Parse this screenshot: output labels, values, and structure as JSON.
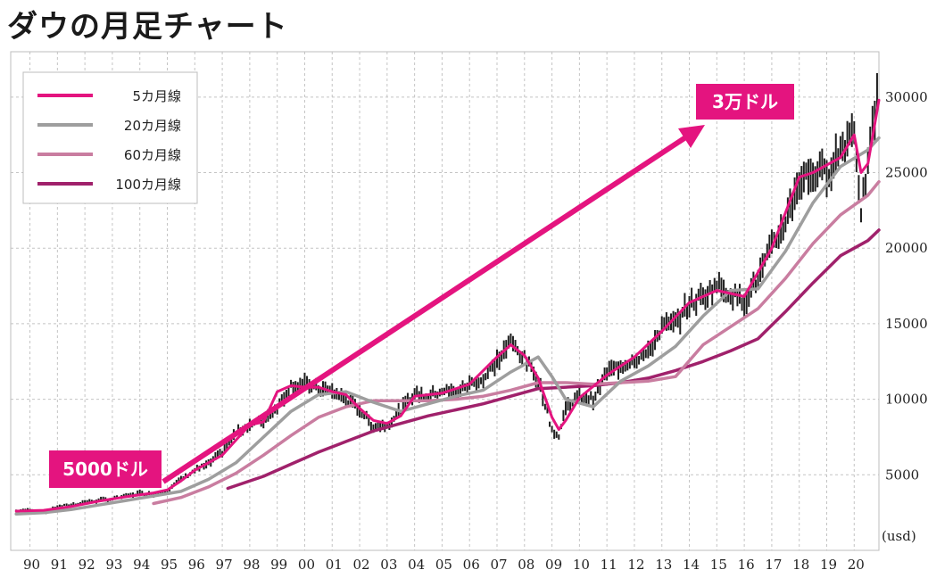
{
  "chart_data": {
    "type": "line",
    "title": "ダウの月足チャート",
    "ylabel": "(usd)",
    "xlim": [
      1989.3,
      2020.9
    ],
    "ylim": [
      0,
      33000
    ],
    "grid": true,
    "x_tick_labels": [
      "90",
      "91",
      "92",
      "93",
      "94",
      "95",
      "96",
      "97",
      "98",
      "99",
      "00",
      "01",
      "02",
      "03",
      "04",
      "05",
      "06",
      "07",
      "08",
      "09",
      "10",
      "11",
      "12",
      "13",
      "14",
      "15",
      "16",
      "17",
      "18",
      "19",
      "20"
    ],
    "y_ticks": [
      5000,
      10000,
      15000,
      20000,
      25000,
      30000
    ],
    "price_series": {
      "name": "月足",
      "x": [
        1989.5,
        1990,
        1990.5,
        1991,
        1991.5,
        1992,
        1992.5,
        1993,
        1993.5,
        1994,
        1994.5,
        1995,
        1995.5,
        1996,
        1996.5,
        1997,
        1997.5,
        1998,
        1998.5,
        1999,
        1999.5,
        2000,
        2000.5,
        2001,
        2001.5,
        2002,
        2002.5,
        2003,
        2003.5,
        2004,
        2004.5,
        2005,
        2005.5,
        2006,
        2006.5,
        2007,
        2007.5,
        2008,
        2008.5,
        2009,
        2009.25,
        2009.5,
        2010,
        2010.5,
        2011,
        2011.5,
        2012,
        2012.5,
        2013,
        2013.5,
        2014,
        2014.5,
        2015,
        2015.5,
        2016,
        2016.5,
        2017,
        2017.5,
        2018,
        2018.5,
        2019,
        2019.5,
        2020,
        2020.25,
        2020.5,
        2020.9
      ],
      "values": [
        2600,
        2700,
        2500,
        2900,
        3000,
        3200,
        3300,
        3400,
        3600,
        3800,
        3700,
        4000,
        4700,
        5300,
        5700,
        6500,
        7800,
        8300,
        8600,
        9500,
        10900,
        11000,
        10700,
        10500,
        10000,
        9300,
        8200,
        8300,
        9300,
        10400,
        10200,
        10600,
        10400,
        11000,
        11300,
        12500,
        13800,
        12700,
        11300,
        8000,
        7500,
        9500,
        10200,
        10000,
        11800,
        12200,
        12700,
        13000,
        14800,
        15000,
        16300,
        16800,
        17600,
        17000,
        16500,
        18000,
        20000,
        21800,
        24500,
        25000,
        25000,
        26500,
        28000,
        22500,
        25500,
        31000
      ]
    },
    "series": [
      {
        "name": "5カ月線",
        "color": "#e4147f",
        "x": [
          1989.5,
          1990.5,
          1991.5,
          1992.5,
          1993.5,
          1994.5,
          1995,
          1995.5,
          1996,
          1997,
          1998,
          1998.5,
          1999,
          1999.5,
          2000,
          2000.5,
          2001,
          2001.5,
          2002,
          2002.5,
          2003,
          2003.5,
          2004,
          2005,
          2006,
          2007,
          2007.5,
          2008,
          2008.5,
          2009,
          2009.25,
          2009.5,
          2010,
          2011,
          2012,
          2013,
          2014,
          2015,
          2016,
          2017,
          2018,
          2018.5,
          2019,
          2019.5,
          2020,
          2020.25,
          2020.5,
          2020.9
        ],
        "values": [
          2600,
          2650,
          2900,
          3250,
          3550,
          3800,
          4000,
          4600,
          5300,
          6300,
          8300,
          8500,
          10500,
          10900,
          10800,
          10800,
          10500,
          10300,
          9400,
          8600,
          8400,
          8900,
          10200,
          10400,
          11000,
          12800,
          13600,
          12900,
          11400,
          8800,
          8000,
          8600,
          10100,
          11600,
          12800,
          14500,
          16400,
          17200,
          16800,
          20000,
          24700,
          25000,
          25500,
          26000,
          27500,
          25000,
          25600,
          29800
        ]
      },
      {
        "name": "20カ月線",
        "color": "#9e9e9e",
        "x": [
          1989.5,
          1990.5,
          1991.5,
          1992.5,
          1993.5,
          1994.5,
          1995.5,
          1996.5,
          1997.5,
          1998.5,
          1999.5,
          2000.5,
          2001.5,
          2002.5,
          2003.5,
          2004.5,
          2005.5,
          2006.5,
          2007.5,
          2008.5,
          2009,
          2009.5,
          2010.5,
          2011.5,
          2012.5,
          2013.5,
          2014.5,
          2015.5,
          2016.5,
          2017.5,
          2018.5,
          2019.5,
          2020.5,
          2020.9
        ],
        "values": [
          2400,
          2500,
          2700,
          3000,
          3300,
          3600,
          3900,
          4700,
          5800,
          7500,
          9200,
          10300,
          10500,
          9800,
          9200,
          9700,
          10200,
          10600,
          11800,
          12800,
          11500,
          10000,
          9500,
          11200,
          12200,
          13500,
          15500,
          17200,
          17300,
          19800,
          23000,
          25400,
          26500,
          27300
        ]
      },
      {
        "name": "60カ月線",
        "color": "#c97da0",
        "x": [
          1994.5,
          1995.5,
          1996.5,
          1997.5,
          1998.5,
          1999.5,
          2000.5,
          2001.5,
          2002.5,
          2003.5,
          2004.5,
          2005.5,
          2006.5,
          2007.5,
          2008.5,
          2009.5,
          2010.5,
          2011.5,
          2012.5,
          2013.5,
          2014.5,
          2015.5,
          2016.5,
          2017.5,
          2018.5,
          2019.5,
          2020.5,
          2020.9
        ],
        "values": [
          3100,
          3500,
          4200,
          5100,
          6300,
          7600,
          8800,
          9500,
          9900,
          9900,
          9900,
          10000,
          10200,
          10600,
          11100,
          11100,
          11000,
          11100,
          11200,
          11500,
          13600,
          14800,
          16000,
          18000,
          20300,
          22200,
          23500,
          24400
        ]
      },
      {
        "name": "100カ月線",
        "color": "#a0216b",
        "x": [
          1997.2,
          1998.5,
          1999.5,
          2000.5,
          2001.5,
          2002.5,
          2003.5,
          2004.5,
          2005.5,
          2006.5,
          2007.5,
          2008.5,
          2009.5,
          2010.5,
          2011.5,
          2012.5,
          2013.5,
          2014.5,
          2015.5,
          2016.5,
          2017.5,
          2018.5,
          2019.5,
          2020.5,
          2020.9
        ],
        "values": [
          4100,
          4900,
          5700,
          6500,
          7200,
          7900,
          8400,
          8900,
          9300,
          9700,
          10200,
          10700,
          10800,
          10900,
          11100,
          11400,
          11900,
          12500,
          13200,
          14000,
          15800,
          17700,
          19500,
          20500,
          21200
        ]
      }
    ],
    "annotations": [
      {
        "label": "5000ドル"
      },
      {
        "label": "3万ドル"
      }
    ]
  }
}
